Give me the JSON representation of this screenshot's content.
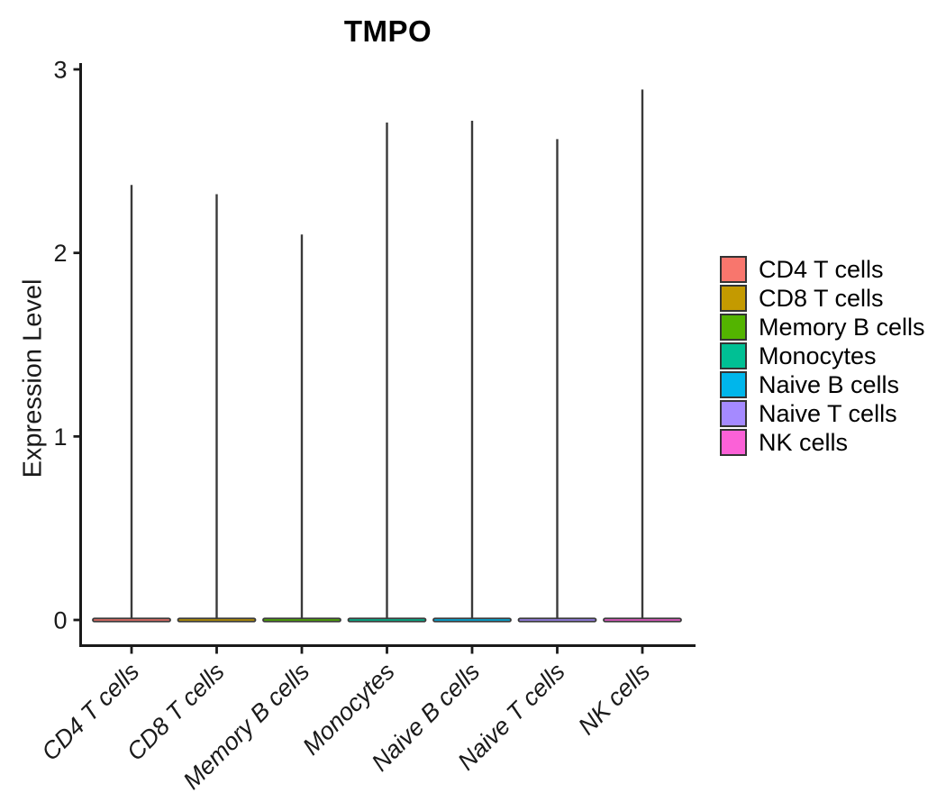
{
  "figure": {
    "background": "#ffffff",
    "axis_color": "#1a1a1a",
    "violin_outline_color": "#3a3a3a"
  },
  "legend": {
    "position": "right",
    "items": [
      {
        "label": "CD4 T cells",
        "color": "#F8766D"
      },
      {
        "label": "CD8 T cells",
        "color": "#C49A00"
      },
      {
        "label": "Memory B cells",
        "color": "#53B400"
      },
      {
        "label": "Monocytes",
        "color": "#00C094"
      },
      {
        "label": "Naive B cells",
        "color": "#00B6EB"
      },
      {
        "label": "Naive T cells",
        "color": "#A58AFF"
      },
      {
        "label": "NK cells",
        "color": "#FB61D7"
      }
    ]
  },
  "chart_data": {
    "type": "violin",
    "title": "TMPO",
    "xlabel": "",
    "ylabel": "Expression Level",
    "ylim": [
      0,
      3
    ],
    "yticks": [
      0,
      1,
      2,
      3
    ],
    "ytick_labels": [
      "0",
      "1",
      "2",
      "3"
    ],
    "grid": false,
    "legend_position": "right",
    "x_tick_label_style": "italic, rotated 45 degrees",
    "categories": [
      "CD4 T cells",
      "CD8 T cells",
      "Memory B cells",
      "Monocytes",
      "Naive B cells",
      "Naive T cells",
      "NK cells"
    ],
    "series": [
      {
        "name": "CD4 T cells",
        "color": "#F8766D",
        "max_expression": 2.37,
        "density_mode": 0,
        "shape": "flat wide base at 0 with thin spike to max"
      },
      {
        "name": "CD8 T cells",
        "color": "#C49A00",
        "max_expression": 2.32,
        "density_mode": 0,
        "shape": "flat wide base at 0 with thin spike to max"
      },
      {
        "name": "Memory B cells",
        "color": "#53B400",
        "max_expression": 2.1,
        "density_mode": 0,
        "shape": "flat wide base at 0 with thin spike to max"
      },
      {
        "name": "Monocytes",
        "color": "#00C094",
        "max_expression": 2.71,
        "density_mode": 0,
        "shape": "flat wide base at 0 with thin spike to max"
      },
      {
        "name": "Naive B cells",
        "color": "#00B6EB",
        "max_expression": 2.72,
        "density_mode": 0,
        "shape": "flat wide base at 0 with thin spike to max"
      },
      {
        "name": "Naive T cells",
        "color": "#A58AFF",
        "max_expression": 2.62,
        "density_mode": 0,
        "shape": "flat wide base at 0 with thin spike to max"
      },
      {
        "name": "NK cells",
        "color": "#FB61D7",
        "max_expression": 2.89,
        "density_mode": 0,
        "shape": "flat wide base at 0 with thin spike to max"
      }
    ]
  }
}
